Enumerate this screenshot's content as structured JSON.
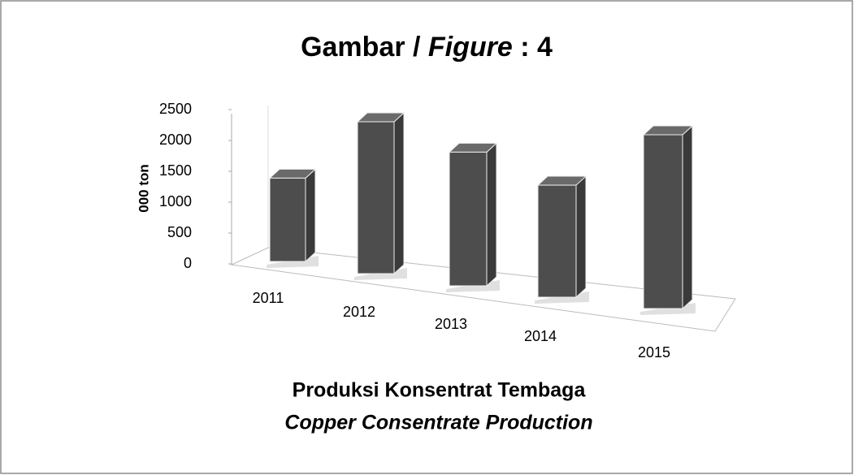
{
  "chart_data": {
    "type": "bar3d",
    "title": [
      "Gambar / ",
      "Figure",
      " : 4"
    ],
    "y_axis_label": "000 ton",
    "caption": "Produksi Konsentrat Tembaga",
    "caption_en": "Copper Consentrate Production",
    "categories": [
      "2011",
      "2012",
      "2013",
      "2014",
      "2015"
    ],
    "values": [
      1350,
      2300,
      1900,
      1500,
      2200
    ],
    "color": "#4d4d4d",
    "ylim": [
      0,
      2500
    ],
    "yticks": [
      0,
      500,
      1000,
      1500,
      2000,
      2500
    ]
  }
}
